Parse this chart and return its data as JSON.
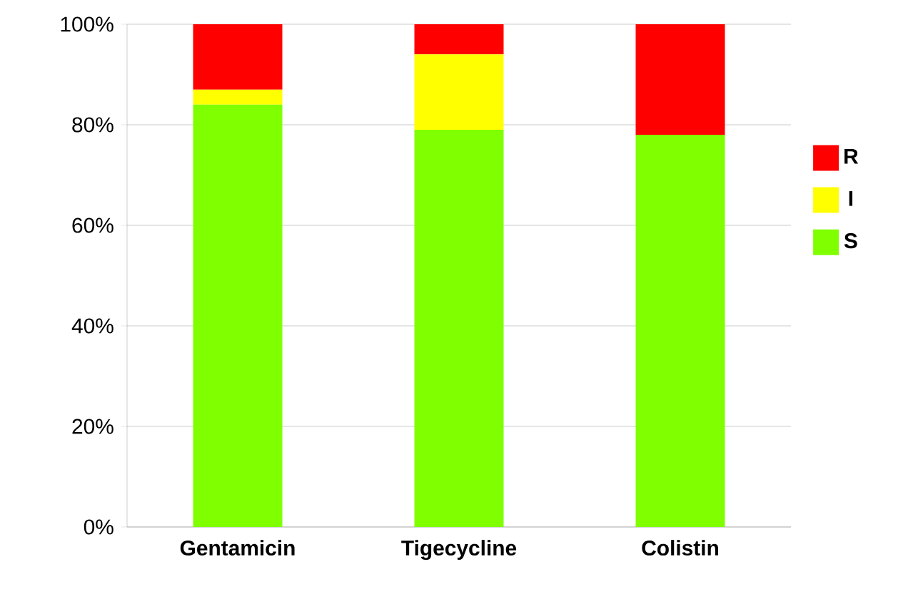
{
  "chart_data": {
    "type": "bar",
    "stacked": true,
    "categories": [
      "Gentamicin",
      "Tigecycline",
      "Colistin"
    ],
    "series": [
      {
        "name": "S",
        "color": "#80ff00",
        "values": [
          84,
          79,
          78
        ]
      },
      {
        "name": "I",
        "color": "#ffff00",
        "values": [
          3,
          15,
          0
        ]
      },
      {
        "name": "R",
        "color": "#ff0000",
        "values": [
          13,
          6,
          22
        ]
      }
    ],
    "ylim": [
      0,
      100
    ],
    "yticks": [
      {
        "value": 0,
        "label": "0%"
      },
      {
        "value": 20,
        "label": "20%"
      },
      {
        "value": 40,
        "label": "40%"
      },
      {
        "value": 60,
        "label": "60%"
      },
      {
        "value": 80,
        "label": "80%"
      },
      {
        "value": 100,
        "label": "100%"
      }
    ],
    "grid": "y",
    "legend": "right"
  }
}
